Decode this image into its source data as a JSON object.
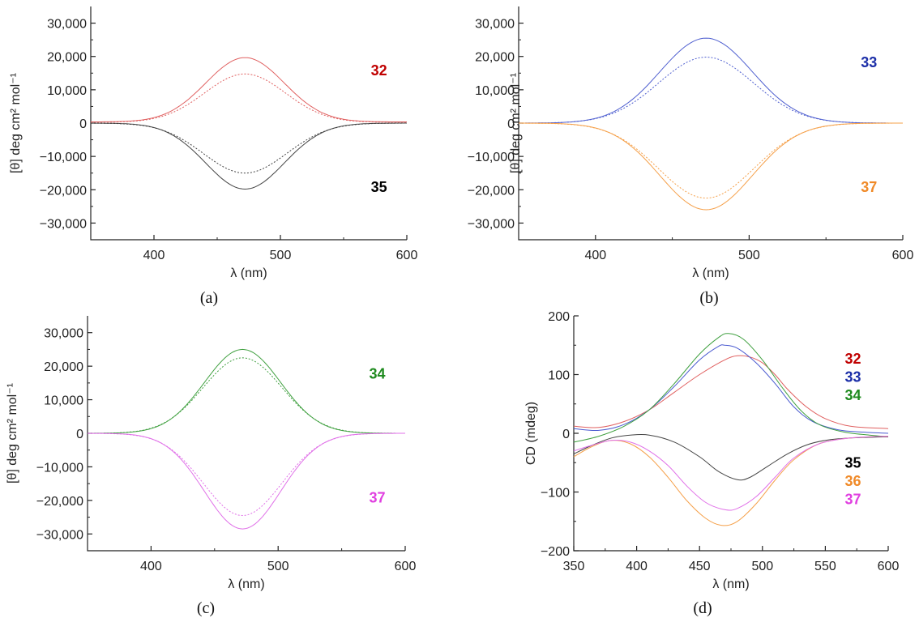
{
  "chart_data": [
    {
      "type": "line",
      "panel": "a",
      "caption": "(a)",
      "xlabel": "λ (nm)",
      "ylabel": "[θ] deg cm² mol⁻¹",
      "xlim": [
        350,
        600
      ],
      "ylim": [
        -35000,
        35000
      ],
      "xticks": [
        400,
        500,
        600
      ],
      "xtick_labels": [
        "400",
        "500",
        "600"
      ],
      "yticks": [
        30000,
        20000,
        10000,
        0,
        -10000,
        -20000,
        -30000
      ],
      "ytick_labels": [
        "30,000",
        "20,000",
        "10,000",
        "0",
        "−10,000",
        "−20,000",
        "−30,000"
      ],
      "labels": [
        {
          "text": "32",
          "color": "#c00000",
          "x": 578,
          "y": 16000
        },
        {
          "text": "35",
          "color": "#000000",
          "x": 578,
          "y": -19000
        }
      ],
      "series": [
        {
          "name": "32 (solid)",
          "color": "#e06060",
          "style": "solid",
          "offset": 350,
          "peak": 19300,
          "center": 472,
          "sigma": 31
        },
        {
          "name": "32 (dashed)",
          "color": "#e06060",
          "style": "dashed",
          "offset": 250,
          "peak": 14500,
          "center": 472,
          "sigma": 32
        },
        {
          "name": "35 (solid)",
          "color": "#444444",
          "style": "solid",
          "offset": 0,
          "peak": -19800,
          "center": 472,
          "sigma": 31
        },
        {
          "name": "35 (dashed)",
          "color": "#444444",
          "style": "dashed",
          "offset": 0,
          "peak": -15000,
          "center": 472,
          "sigma": 33
        }
      ]
    },
    {
      "type": "line",
      "panel": "b",
      "caption": "(b)",
      "xlabel": "λ (nm)",
      "ylabel": "[θ] deg cm² mol⁻¹",
      "xlim": [
        350,
        600
      ],
      "ylim": [
        -35000,
        35000
      ],
      "xticks": [
        400,
        500,
        600
      ],
      "xtick_labels": [
        "400",
        "500",
        "600"
      ],
      "yticks": [
        30000,
        20000,
        10000,
        0,
        -10000,
        -20000,
        -30000
      ],
      "ytick_labels": [
        "30,000",
        "20,000",
        "10,000",
        "0",
        "−10,000",
        "−20,000",
        "−30,000"
      ],
      "labels": [
        {
          "text": "33",
          "color": "#1c2fa8",
          "x": 578,
          "y": 18500
        },
        {
          "text": "37",
          "color": "#f08a28",
          "x": 578,
          "y": -19000
        }
      ],
      "series": [
        {
          "name": "33 (solid)",
          "color": "#5060d0",
          "style": "solid",
          "offset": 0,
          "peak": 25500,
          "center": 472,
          "sigma": 30
        },
        {
          "name": "33 (dashed)",
          "color": "#5060d0",
          "style": "dashed",
          "offset": 0,
          "peak": 19800,
          "center": 472,
          "sigma": 31
        },
        {
          "name": "37 (solid)",
          "color": "#f5a04a",
          "style": "solid",
          "offset": 0,
          "peak": -26000,
          "center": 472,
          "sigma": 30
        },
        {
          "name": "37 (dashed)",
          "color": "#f5a04a",
          "style": "dashed",
          "offset": 0,
          "peak": -22500,
          "center": 472,
          "sigma": 31
        }
      ]
    },
    {
      "type": "line",
      "panel": "c",
      "caption": "(c)",
      "xlabel": "λ (nm)",
      "ylabel": "[θ] deg cm² mol⁻¹",
      "xlim": [
        350,
        600
      ],
      "ylim": [
        -35000,
        35000
      ],
      "xticks": [
        400,
        500,
        600
      ],
      "xtick_labels": [
        "400",
        "500",
        "600"
      ],
      "yticks": [
        30000,
        20000,
        10000,
        0,
        -10000,
        -20000,
        -30000
      ],
      "ytick_labels": [
        "30,000",
        "20,000",
        "10,000",
        "0",
        "−10,000",
        "−20,000",
        "−30,000"
      ],
      "labels": [
        {
          "text": "34",
          "color": "#1e8a1e",
          "x": 578,
          "y": 18000
        },
        {
          "text": "37",
          "color": "#e040e0",
          "x": 578,
          "y": -19000
        }
      ],
      "series": [
        {
          "name": "34 (solid)",
          "color": "#40a040",
          "style": "solid",
          "offset": 0,
          "peak": 25000,
          "center": 472,
          "sigma": 30
        },
        {
          "name": "34 (dashed)",
          "color": "#40a040",
          "style": "dashed",
          "offset": 0,
          "peak": 22500,
          "center": 472,
          "sigma": 31
        },
        {
          "name": "37 (solid)",
          "color": "#e070e8",
          "style": "solid",
          "offset": 0,
          "peak": -28500,
          "center": 472,
          "sigma": 30
        },
        {
          "name": "37 (dashed)",
          "color": "#e070e8",
          "style": "dashed",
          "offset": 0,
          "peak": -24500,
          "center": 472,
          "sigma": 31
        }
      ]
    },
    {
      "type": "line",
      "panel": "d",
      "caption": "(d)",
      "xlabel": "λ (nm)",
      "ylabel": "CD (mdeg)",
      "xlim": [
        350,
        600
      ],
      "ylim": [
        -200,
        200
      ],
      "xticks": [
        350,
        400,
        450,
        500,
        550,
        600
      ],
      "xtick_labels": [
        "350",
        "400",
        "450",
        "500",
        "550",
        "600"
      ],
      "yticks": [
        200,
        100,
        0,
        -100,
        -200
      ],
      "ytick_labels": [
        "200",
        "100",
        "0",
        "−100",
        "−200"
      ],
      "labels": [
        {
          "text": "32",
          "color": "#c00000",
          "x": 572,
          "y": 128
        },
        {
          "text": "33",
          "color": "#1c2fa8",
          "x": 572,
          "y": 97
        },
        {
          "text": "34",
          "color": "#1e8a1e",
          "x": 572,
          "y": 66
        },
        {
          "text": "35",
          "color": "#000000",
          "x": 572,
          "y": -49
        },
        {
          "text": "36",
          "color": "#f08a28",
          "x": 572,
          "y": -80
        },
        {
          "text": "37",
          "color": "#e040e0",
          "x": 572,
          "y": -111
        }
      ],
      "series": [
        {
          "name": "32",
          "color": "#e06060",
          "style": "solid",
          "points": [
            [
              350,
              12
            ],
            [
              370,
              10
            ],
            [
              390,
              20
            ],
            [
              410,
              40
            ],
            [
              430,
              70
            ],
            [
              450,
              100
            ],
            [
              470,
              125
            ],
            [
              480,
              132
            ],
            [
              490,
              130
            ],
            [
              500,
              120
            ],
            [
              510,
              100
            ],
            [
              520,
              75
            ],
            [
              535,
              45
            ],
            [
              550,
              25
            ],
            [
              570,
              12
            ],
            [
              600,
              8
            ]
          ]
        },
        {
          "name": "33",
          "color": "#4a5ad0",
          "style": "solid",
          "points": [
            [
              350,
              8
            ],
            [
              370,
              5
            ],
            [
              390,
              15
            ],
            [
              410,
              40
            ],
            [
              430,
              80
            ],
            [
              450,
              125
            ],
            [
              465,
              148
            ],
            [
              470,
              150
            ],
            [
              480,
              145
            ],
            [
              495,
              120
            ],
            [
              510,
              85
            ],
            [
              525,
              45
            ],
            [
              540,
              20
            ],
            [
              560,
              6
            ],
            [
              580,
              2
            ],
            [
              600,
              0
            ]
          ]
        },
        {
          "name": "34",
          "color": "#40a040",
          "style": "solid",
          "points": [
            [
              350,
              -15
            ],
            [
              370,
              -5
            ],
            [
              390,
              12
            ],
            [
              410,
              40
            ],
            [
              430,
              85
            ],
            [
              450,
              135
            ],
            [
              465,
              163
            ],
            [
              473,
              170
            ],
            [
              485,
              160
            ],
            [
              500,
              125
            ],
            [
              515,
              80
            ],
            [
              530,
              40
            ],
            [
              545,
              15
            ],
            [
              565,
              2
            ],
            [
              585,
              -3
            ],
            [
              600,
              -6
            ]
          ]
        },
        {
          "name": "35",
          "color": "#444444",
          "style": "solid",
          "points": [
            [
              350,
              -35
            ],
            [
              365,
              -20
            ],
            [
              380,
              -8
            ],
            [
              395,
              -3
            ],
            [
              410,
              -3
            ],
            [
              430,
              -15
            ],
            [
              450,
              -40
            ],
            [
              465,
              -65
            ],
            [
              480,
              -79
            ],
            [
              490,
              -75
            ],
            [
              505,
              -55
            ],
            [
              520,
              -35
            ],
            [
              535,
              -20
            ],
            [
              550,
              -12
            ],
            [
              570,
              -8
            ],
            [
              600,
              -6
            ]
          ]
        },
        {
          "name": "36",
          "color": "#f5a04a",
          "style": "solid",
          "points": [
            [
              350,
              -40
            ],
            [
              365,
              -22
            ],
            [
              380,
              -12
            ],
            [
              395,
              -18
            ],
            [
              410,
              -40
            ],
            [
              425,
              -75
            ],
            [
              440,
              -115
            ],
            [
              455,
              -145
            ],
            [
              468,
              -157
            ],
            [
              480,
              -150
            ],
            [
              495,
              -120
            ],
            [
              510,
              -80
            ],
            [
              525,
              -45
            ],
            [
              545,
              -18
            ],
            [
              570,
              -8
            ],
            [
              600,
              -5
            ]
          ]
        },
        {
          "name": "37",
          "color": "#e070e8",
          "style": "solid",
          "points": [
            [
              350,
              -30
            ],
            [
              365,
              -20
            ],
            [
              380,
              -12
            ],
            [
              395,
              -15
            ],
            [
              410,
              -30
            ],
            [
              425,
              -55
            ],
            [
              440,
              -90
            ],
            [
              455,
              -118
            ],
            [
              470,
              -130
            ],
            [
              480,
              -128
            ],
            [
              495,
              -108
            ],
            [
              510,
              -75
            ],
            [
              525,
              -42
            ],
            [
              545,
              -18
            ],
            [
              570,
              -8
            ],
            [
              600,
              -5
            ]
          ]
        }
      ]
    }
  ]
}
